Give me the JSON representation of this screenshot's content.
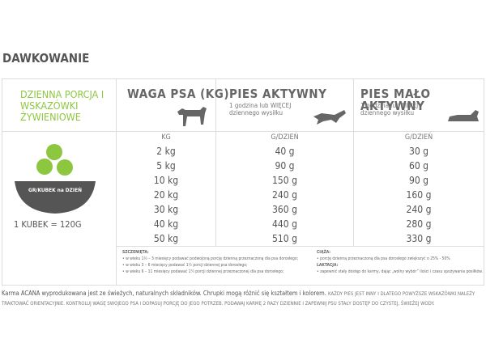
{
  "header": {
    "title": "DAWKOWANIE"
  },
  "table": {
    "left_heading": "DZIENNA PORCJA I WSKAZÓWKI ŻYWIENIOWE",
    "bowl_label": "GR/KUBEK na DZIEŃ",
    "cup_note": "1 KUBEK = 120G",
    "columns": [
      {
        "title": "WAGA PSA (KG)"
      },
      {
        "title": "PIES AKTYWNY",
        "subtitle": "1 godzina lub WIĘCEJ dziennego wysiłku"
      },
      {
        "title": "PIES MAŁO AKTYWNY",
        "subtitle": "1 godzina lub MNIEJ dziennego wysiłku"
      }
    ],
    "units": [
      "KG",
      "G/DZIEŃ",
      "G/DZIEŃ"
    ],
    "rows": [
      [
        "2 kg",
        "40 g",
        "30 g"
      ],
      [
        "5 kg",
        "90 g",
        "60 g"
      ],
      [
        "10 kg",
        "150 g",
        "90 g"
      ],
      [
        "20 kg",
        "240 g",
        "160 g"
      ],
      [
        "30 kg",
        "360 g",
        "240 g"
      ],
      [
        "40 kg",
        "440 g",
        "280 g"
      ],
      [
        "50 kg",
        "510 g",
        "330 g"
      ]
    ]
  },
  "notes": {
    "puppies": {
      "heading": "SZCZENIĘTA:",
      "items": [
        "• w wieku 1½ – 3 miesięcy podawać podwojoną porcję dzienną przeznaczoną dla psa dorosłego;",
        "• w wieku 3 – 6 miesięcy podawać 1½ porcji dziennej psa dorosłego;",
        "• w wieku 6 – 11 miesięcy podawać 1¼ porcji dziennej przeznaczonej dla psa dorosłego;"
      ]
    },
    "pregnancy": {
      "heading": "CIĄŻA:",
      "text": "• porcję dzienną przeznaczoną dla psa dorosłego zwiększyć o 25% - 50%"
    },
    "lactation": {
      "heading": "LAKTACJA:",
      "text": "• zapewnić stały dostęp do karmy, dając „wolny wybór” ilości i czasu spożywania posiłków."
    }
  },
  "footer": {
    "lead": "Karma ACANA wyprodukowana jest ze świeżych, naturalnych składników. Chrupki mogą różnić się kształtem i kolorem.",
    "note": "Każdy pies jest inny i dlatego powyższe wskazówki należy traktować orientacyjnie. Kontroluj wagę swojego psa i dopasuj porcję do jego potrzeb. Podawaj karmę 2 razy dziennie i zapewnij psu stały dostęp do czystej, świeżej wody."
  }
}
